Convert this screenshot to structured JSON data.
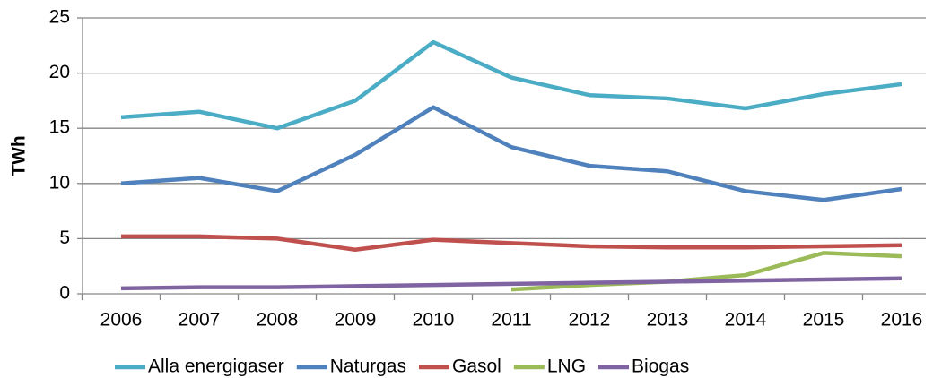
{
  "chart_data": {
    "type": "line",
    "ylabel": "TWh",
    "categories": [
      "2006",
      "2007",
      "2008",
      "2009",
      "2010",
      "2011",
      "2012",
      "2013",
      "2014",
      "2015",
      "2016"
    ],
    "series": [
      {
        "name": "Alla energigaser",
        "color": "#4bacc6",
        "values": [
          16.0,
          16.5,
          15.0,
          17.5,
          22.8,
          19.6,
          18.0,
          17.7,
          16.8,
          18.1,
          19.0
        ]
      },
      {
        "name": "Naturgas",
        "color": "#4f81bd",
        "values": [
          10.0,
          10.5,
          9.3,
          12.6,
          16.9,
          13.3,
          11.6,
          11.1,
          9.3,
          8.5,
          9.5
        ]
      },
      {
        "name": "Gasol",
        "color": "#c0504d",
        "values": [
          5.2,
          5.2,
          5.0,
          4.0,
          4.9,
          4.6,
          4.3,
          4.2,
          4.2,
          4.3,
          4.4
        ]
      },
      {
        "name": "LNG",
        "color": "#9bbb59",
        "values": [
          null,
          null,
          null,
          null,
          null,
          0.4,
          0.8,
          1.1,
          1.7,
          3.7,
          3.4
        ]
      },
      {
        "name": "Biogas",
        "color": "#8064a2",
        "values": [
          0.5,
          0.6,
          0.6,
          0.7,
          0.8,
          0.9,
          1.0,
          1.1,
          1.2,
          1.3,
          1.4
        ]
      }
    ],
    "ylim": [
      0,
      25
    ],
    "yticks": [
      0,
      5,
      10,
      15,
      20,
      25
    ],
    "grid": true,
    "legend": "bottom"
  }
}
